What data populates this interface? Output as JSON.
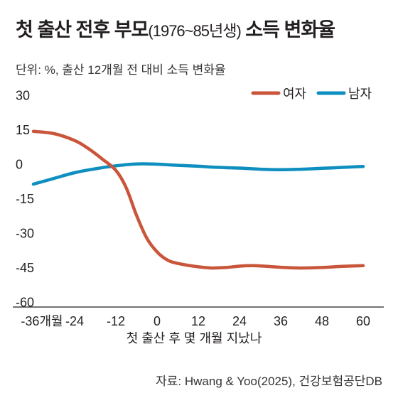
{
  "chart_data": {
    "type": "line",
    "title_main": "첫 출산 전후 부모",
    "title_paren": "(1976~85년생)",
    "title_tail": " 소득 변화율",
    "subtitle": "단위: %,  출산 12개월 전 대비 소득 변화율",
    "source": "자료: Hwang & Yoo(2025), 건강보험공단DB",
    "xlabel": "첫 출산 후 몇 개월 지났나",
    "ylabel": "",
    "xlim": [
      -42,
      66
    ],
    "ylim": [
      -62,
      33
    ],
    "x_ticks": [
      -36,
      -24,
      -12,
      0,
      12,
      24,
      36,
      48,
      60
    ],
    "x_tick_labels": [
      "-36개월",
      "-24",
      "-12",
      "0",
      "12",
      "24",
      "36",
      "48",
      "60"
    ],
    "y_ticks": [
      30,
      15,
      0,
      -15,
      -30,
      -45,
      -60
    ],
    "y_tick_labels": [
      "30",
      "15",
      "0",
      "-15",
      "-30",
      "-45",
      "-60"
    ],
    "grid": false,
    "legend_position": "top-right",
    "series": [
      {
        "name": "여자",
        "color": "#c9553a",
        "points": [
          [
            -36,
            14.5
          ],
          [
            -30,
            13.5
          ],
          [
            -24,
            10.5
          ],
          [
            -20,
            7.0
          ],
          [
            -16,
            2.5
          ],
          [
            -12,
            -2.5
          ],
          [
            -9,
            -10
          ],
          [
            -6,
            -22
          ],
          [
            -3,
            -32
          ],
          [
            0,
            -38
          ],
          [
            3,
            -41.5
          ],
          [
            6,
            -43
          ],
          [
            12,
            -44.5
          ],
          [
            16,
            -45
          ],
          [
            20,
            -44.8
          ],
          [
            24,
            -44.2
          ],
          [
            28,
            -44
          ],
          [
            32,
            -44.3
          ],
          [
            36,
            -44.7
          ],
          [
            42,
            -45
          ],
          [
            48,
            -44.8
          ],
          [
            54,
            -44.3
          ],
          [
            60,
            -44
          ]
        ]
      },
      {
        "name": "남자",
        "color": "#0e8fc0",
        "points": [
          [
            -36,
            -8.5
          ],
          [
            -30,
            -6
          ],
          [
            -24,
            -3.5
          ],
          [
            -18,
            -1.8
          ],
          [
            -12,
            -0.5
          ],
          [
            -6,
            0.3
          ],
          [
            0,
            0.2
          ],
          [
            6,
            -0.3
          ],
          [
            12,
            -0.7
          ],
          [
            18,
            -1.2
          ],
          [
            24,
            -1.5
          ],
          [
            30,
            -2
          ],
          [
            36,
            -2.2
          ],
          [
            42,
            -2
          ],
          [
            48,
            -1.6
          ],
          [
            54,
            -1.2
          ],
          [
            60,
            -0.8
          ]
        ]
      }
    ]
  }
}
